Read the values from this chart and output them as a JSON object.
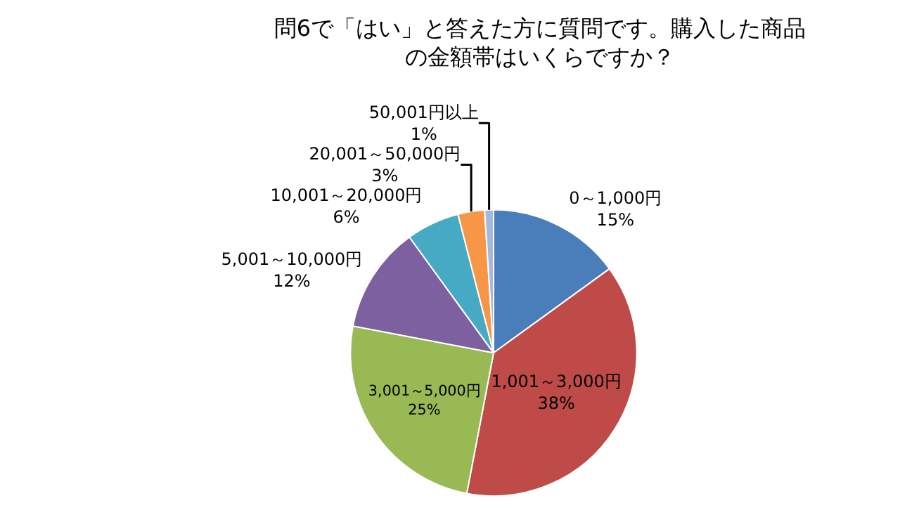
{
  "chart_data": {
    "type": "pie",
    "title": "問6で「はい」と答えた方に質問です。購入した商品の金額帯はいくらですか？",
    "categories": [
      "0～1,000円",
      "1,001～3,000円",
      "3,001～5,000円",
      "5,001～10,000円",
      "10,001～20,000円",
      "20,001～50,000円",
      "50,001円以上"
    ],
    "values": [
      15,
      38,
      25,
      12,
      6,
      3,
      1
    ],
    "value_labels": [
      "15%",
      "38%",
      "25%",
      "12%",
      "6%",
      "3%",
      "1%"
    ],
    "colors": [
      "#4a7ebb",
      "#be4b48",
      "#98b954",
      "#7d60a0",
      "#46aac5",
      "#f79646",
      "#a5b9e0"
    ],
    "legend": false
  }
}
